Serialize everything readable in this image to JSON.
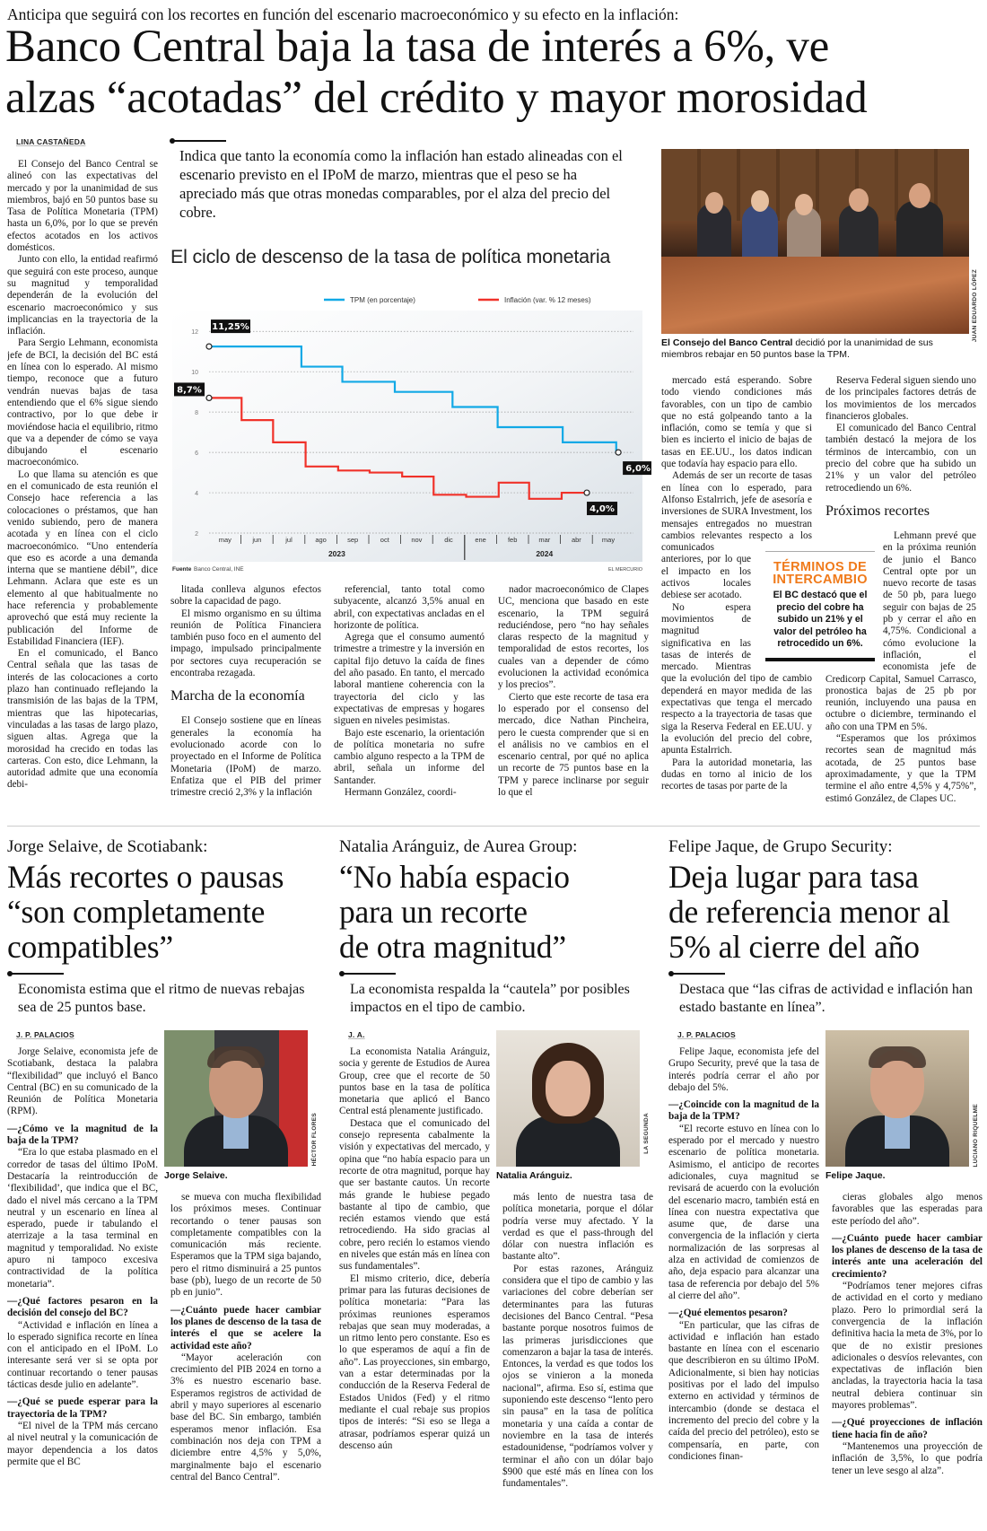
{
  "main": {
    "kicker": "Anticipa que seguirá con los recortes en función del escenario macroeconómico y su efecto en la inflación:",
    "headline": [
      "Banco Central baja la tasa de interés a 6%, ve",
      "alzas “acotadas” del crédito y mayor morosidad"
    ],
    "byline": "LINA CASTAÑEDA",
    "deck": "Indica que tanto la economía como la inflación han estado alineadas con el escenario previsto en el IPoM de marzo, mientras que el peso se ha apreciado más que otras monedas comparables, por el alza del precio del cobre.",
    "photo": {
      "caption_bold": "El Consejo del Banco Central",
      "caption_rest": " decidió por la unanimidad de sus miembros rebajar en 50 puntos base la TPM.",
      "credit": "JUAN EDUARDO LÓPEZ"
    },
    "sidebar": {
      "title": "TÉRMINOS DE INTERCAMBIO",
      "text": "El BC destacó que el precio del cobre ha subido un 21% y el valor del petróleo ha retrocedido un 6%.",
      "accent": "#f07a1a"
    },
    "columns": [
      [
        {
          "t": "p",
          "text": "El Consejo del Banco Central se alineó con las expectativas del mercado y por la unanimidad de sus miembros, bajó en 50 puntos base su Tasa de Política Monetaria (TPM) hasta un 6,0%, por lo que se prevén efectos acotados en los activos domésticos."
        },
        {
          "t": "p",
          "text": "Junto con ello, la entidad reafirmó que seguirá con este proceso, aunque su magnitud y temporalidad dependerán de la evolución del escenario macroeconómico y sus implicancias en la trayectoria de la inflación."
        },
        {
          "t": "p",
          "text": "Para Sergio Lehmann, economista jefe de BCI, la decisión del BC está en línea con lo esperado. Al mismo tiempo, reconoce que a futuro vendrán nuevas bajas de tasa entendiendo que el 6% sigue siendo contractivo, por lo que debe ir moviéndose hacia el equilibrio, ritmo que va a depender de cómo se vaya dibujando el escenario macroeconómico."
        },
        {
          "t": "p",
          "text": "Lo que llama su atención es que en el comunicado de esta reunión el Consejo hace referencia a las colocaciones o préstamos, que han venido subiendo, pero de manera acotada y en línea con el ciclo macroeconómico. “Uno entendería que eso es acorde a una demanda interna que se mantiene débil”, dice Lehmann. Aclara que este es un elemento al que habitualmente no hace referencia y probablemente aprovechó que está muy reciente la publicación del Informe de Estabilidad Financiera (IEF)."
        },
        {
          "t": "p",
          "text": "En el comunicado, el Banco Central señala que las tasas de interés de las colocaciones a corto plazo han continuado reflejando la transmisión de las bajas de la TPM, mientras que las hipotecarias, vinculadas a las tasas de largo plazo, siguen altas. Agrega que la morosidad ha crecido en todas las carteras. Con esto, dice Lehmann, la autoridad admite que una economía debi-"
        }
      ],
      [
        {
          "t": "p",
          "text": "litada conlleva algunos efectos sobre la capacidad de pago."
        },
        {
          "t": "p",
          "text": "El mismo organismo en su última reunión de Política Financiera también puso foco en el aumento del impago, impulsado principalmente por sectores cuya recuperación se encontraba rezagada."
        },
        {
          "t": "h",
          "text": "Marcha de la economía"
        },
        {
          "t": "p",
          "text": "El Consejo sostiene que en líneas generales la economía ha evolucionado acorde con lo proyectado en el Informe de Política Monetaria (IPoM) de marzo. Enfatiza que el PIB del primer trimestre creció 2,3% y la inflación"
        }
      ],
      [
        {
          "t": "p",
          "text": "referencial, tanto total como subyacente, alcanzó 3,5% anual en abril, con expectativas ancladas en el horizonte de política."
        },
        {
          "t": "p",
          "text": "Agrega que el consumo aumentó trimestre a trimestre y la inversión en capital fijo detuvo la caída de fines del año pasado. En tanto, el mercado laboral mantiene coherencia con la trayectoria del ciclo y las expectativas de empresas y hogares siguen en niveles pesimistas."
        },
        {
          "t": "p",
          "text": "Bajo este escenario, la orientación de política monetaria no sufre cambio alguno respecto a la TPM de abril, señala un informe del Santander."
        },
        {
          "t": "p",
          "text": "Hermann González, coordi-"
        }
      ],
      [
        {
          "t": "p",
          "text": "nador macroeconómico de Clapes UC, menciona que basado en este escenario, la TPM seguirá reduciéndose, pero “no hay señales claras respecto de la magnitud y temporalidad de estos recortes, los cuales van a depender de cómo evolucionen la actividad económica y los precios”."
        },
        {
          "t": "p",
          "text": "Cierto que este recorte de tasa era lo esperado por el consenso del mercado, dice Nathan Pincheira, pero le cuesta comprender que si en el análisis no ve cambios en el escenario central, por qué no aplica un recorte de 75 puntos base en la TPM y parece inclinarse por seguir lo que el"
        }
      ],
      [
        {
          "t": "p",
          "text": "mercado está esperando. Sobre todo viendo condiciones más favorables, con un tipo de cambio que no está golpeando tanto a la inflación, como se temía y que si bien es incierto el inicio de bajas de tasas en EE.UU., los datos indican que todavía hay espacio para ello."
        },
        {
          "t": "p",
          "text": "Además de ser un recorte de tasas en línea con lo esperado, para Alfonso Estalrrich, jefe de asesoría e inversiones de SURA Investment, los mensajes entregados no muestran cambios relevantes respecto a los comunicados anteriores, por lo que el impacto en los activos locales debiese ser acotado."
        },
        {
          "t": "p",
          "text": "No espera movimientos de magnitud significativa en las tasas de interés de mercado. Mientras que la evolución del tipo de cambio dependerá en mayor medida de las expectativas que tenga el mercado respecto a la trayectoria de tasas que siga la Reserva Federal en EE.UU. y la evolución del precio del cobre, apunta Estalrrich."
        },
        {
          "t": "p",
          "text": "Para la autoridad monetaria, las dudas en torno al inicio de los recortes de tasas por parte de la"
        }
      ],
      [
        {
          "t": "p",
          "text": "Reserva Federal siguen siendo uno de los principales factores detrás de los movimientos de los mercados financieros globales."
        },
        {
          "t": "p",
          "text": "El comunicado del Banco Central también destacó la mejora de los términos de intercambio, con un precio del cobre que ha subido un 21% y un valor del petróleo retrocediendo un 6%."
        },
        {
          "t": "h",
          "text": "Próximos recortes"
        },
        {
          "t": "p",
          "text": "Lehmann prevé que en la próxima reunión de junio el Banco Central opte por un nuevo recorte de tasas de 50 pb, para luego seguir con bajas de 25 pb y cerrar el año en 4,75%. Condicional a cómo evolucione la inflación, el economista jefe de Credicorp Capital, Samuel Carrasco, pronostica bajas de 25 pb por reunión, incluyendo una pausa en octubre o diciembre, terminando el año con una TPM en 5%."
        },
        {
          "t": "p",
          "text": "“Esperamos que los próximos recortes sean de magnitud más acotada, de 25 puntos base aproximadamente, y que la TPM termine el año entre 4,5% y 4,75%”, estimó González, de Clapes UC."
        }
      ]
    ]
  },
  "chart_data": {
    "type": "line",
    "title": "El ciclo de descenso de la tasa de política monetaria",
    "source_label": "Fuente",
    "source": "Banco Central, INE",
    "publisher": "EL MERCURIO",
    "x_ticks": [
      "may",
      "jun",
      "jul",
      "ago",
      "sep",
      "oct",
      "nov",
      "dic",
      "ene",
      "feb",
      "mar",
      "abr",
      "may"
    ],
    "x_years": [
      "2023",
      "2024"
    ],
    "y_ticks": [
      2,
      4,
      6,
      8,
      10,
      12
    ],
    "ylim": [
      2,
      12.5
    ],
    "grid": true,
    "legend_position": "top-right",
    "step": true,
    "series": [
      {
        "name": "TPM (en porcentaje)",
        "color": "#12a9e6",
        "points": [
          [
            "2023-05-01",
            11.25
          ],
          [
            "2023-07-28",
            10.25
          ],
          [
            "2023-09-05",
            9.5
          ],
          [
            "2023-10-25",
            9.0
          ],
          [
            "2023-12-19",
            8.25
          ],
          [
            "2024-01-31",
            7.25
          ],
          [
            "2024-04-02",
            6.5
          ],
          [
            "2024-05-23",
            6.0
          ]
        ],
        "end": "2024-05-25"
      },
      {
        "name": "Inflación (var. % 12 meses)",
        "color": "#f0322a",
        "points": [
          [
            "2023-05-01",
            8.7
          ],
          [
            "2023-06-01",
            7.6
          ],
          [
            "2023-07-01",
            6.5
          ],
          [
            "2023-08-01",
            5.3
          ],
          [
            "2023-09-01",
            5.1
          ],
          [
            "2023-10-01",
            5.0
          ],
          [
            "2023-11-01",
            4.8
          ],
          [
            "2023-12-01",
            3.9
          ],
          [
            "2024-01-01",
            3.8
          ],
          [
            "2024-02-01",
            4.5
          ],
          [
            "2024-03-01",
            3.7
          ],
          [
            "2024-04-01",
            4.0
          ]
        ],
        "end": "2024-04-25"
      }
    ],
    "annotations": [
      "11,25%",
      "8,7%",
      "6,0%",
      "4,0%"
    ]
  },
  "articles": [
    {
      "kicker": "Jorge Selaive, de Scotiabank:",
      "headline": [
        "Más recortes o pausas",
        "“son completamente",
        "compatibles”"
      ],
      "deck": "Economista estima que el ritmo de nuevas rebajas sea de 25 puntos base.",
      "byline": "J. P. PALACIOS",
      "photo_caption": "Jorge Selaive.",
      "photo_credit": "HÉCTOR FLORES",
      "columns": [
        [
          {
            "t": "p",
            "text": "Jorge Selaive, economista jefe de Scotiabank, destaca la palabra “flexibilidad” que incluyó el Banco Central (BC) en su comunicado de la Reunión de Política Monetaria (RPM)."
          },
          {
            "t": "q",
            "text": "—¿Cómo ve la magnitud de la baja de la TPM?"
          },
          {
            "t": "p",
            "text": "“Era lo que estaba plasmado en el corredor de tasas del último IPoM. Destacaría la reintroducción de ‘flexibilidad’, que indica que el BC, dado el nivel más cercano a la TPM neutral y un escenario en línea al esperado, puede ir tabulando el aterrizaje a la tasa terminal en magnitud y temporalidad. No existe apuro ni tampoco excesiva contractividad de la política monetaria”."
          },
          {
            "t": "q",
            "text": "—¿Qué factores pesaron en la decisión del consejo del BC?"
          },
          {
            "t": "p",
            "text": "“Actividad e inflación en línea a lo esperado significa recorte en línea con el anticipado en el IPoM. Lo interesante será ver si se opta por continuar recortando o tener pausas tácticas desde julio en adelante”."
          },
          {
            "t": "q",
            "text": "—¿Qué se puede esperar para la trayectoria de la TPM?"
          },
          {
            "t": "p",
            "text": "“El nivel de la TPM más cercano al nivel neutral y la comunicación de mayor dependencia a los datos permite que el BC"
          }
        ],
        [
          {
            "t": "p",
            "text": "se mueva con mucha flexibilidad los próximos meses. Continuar recortando o tener pausas son completamente compatibles con la comunicación más reciente. Esperamos que la TPM siga bajando, pero el ritmo disminuirá a 25 puntos base (pb), luego de un recorte de 50 pb en junio”."
          },
          {
            "t": "q",
            "text": "—¿Cuánto puede hacer cambiar los planes de descenso de la tasa de interés el que se acelere la actividad este año?"
          },
          {
            "t": "p",
            "text": "“Mayor aceleración con crecimiento del PIB 2024 en torno a 3% es nuestro escenario base. Esperamos registros de actividad de abril y mayo superiores al escenario base del BC. Sin embargo, también esperamos menor inflación. Esa combinación nos deja con TPM a diciembre entre 4,5% y 5,0%, marginalmente bajo el escenario central del Banco Central”."
          }
        ]
      ]
    },
    {
      "kicker": "Natalia Aránguiz, de Aurea Group:",
      "headline": [
        "“No había espacio",
        "para un recorte",
        "de otra magnitud”"
      ],
      "deck": "La economista respalda la “cautela” por posibles impactos en el tipo de cambio.",
      "byline": "J. A.",
      "photo_caption": "Natalia Aránguiz.",
      "photo_credit": "LA SEGUNDA",
      "columns": [
        [
          {
            "t": "p",
            "text": "La economista Natalia Aránguiz, socia y gerente de Estudios de Aurea Group, cree que el recorte de 50 puntos base en la tasa de política monetaria que aplicó el Banco Central está plenamente justificado."
          },
          {
            "t": "p",
            "text": "Destaca que el comunicado del consejo representa cabalmente la visión y expectativas del mercado, y opina que “no había espacio para un recorte de otra magnitud, porque hay que ser bastante cautos. Un recorte más grande le hubiese pegado bastante al tipo de cambio, que recién estamos viendo que está retrocediendo. Ha sido gracias al cobre, pero recién lo estamos viendo en niveles que están más en línea con sus fundamentales”."
          },
          {
            "t": "p",
            "text": "El mismo criterio, dice, debería primar para las futuras decisiones de política monetaria: “Para las próximas reuniones esperamos rebajas que sean muy moderadas, a un ritmo lento pero constante. Eso es lo que esperamos de aquí a fin de año”. Las proyecciones, sin embargo, van a estar determinadas por la conducción de la Reserva Federal de Estados Unidos (Fed) y el ritmo mediante el cual rebaje sus propios tipos de interés: “Si eso se llega a atrasar, podríamos esperar quizá un descenso aún"
          }
        ],
        [
          {
            "t": "p",
            "text": "más lento de nuestra tasa de política monetaria, porque el dólar podría verse muy afectado. Y la verdad es que el pass-through del dólar con nuestra inflación es bastante alto”."
          },
          {
            "t": "p",
            "text": "Por estas razones, Aránguiz considera que el tipo de cambio y las variaciones del cobre deberían ser determinantes para las futuras decisiones del Banco Central. “Pesa bastante porque nosotros fuimos de las primeras jurisdicciones que comenzaron a bajar la tasa de interés. Entonces, la verdad es que todos los ojos se vinieron a la moneda nacional”, afirma. Eso sí, estima que suponiendo este descenso “lento pero sin pausa” en la tasa de política monetaria y una caída a contar de noviembre en la tasa de interés estadounidense, “podríamos volver y terminar el año con un dólar bajo $900 que esté más en línea con los fundamentales”."
          }
        ]
      ]
    },
    {
      "kicker": "Felipe Jaque, de Grupo Security:",
      "headline": [
        "Deja lugar para tasa",
        "de referencia menor al",
        "5% al cierre del año"
      ],
      "deck": "Destaca que “las cifras de actividad e inflación han estado bastante en línea”.",
      "byline": "J. P. PALACIOS",
      "photo_caption": "Felipe Jaque.",
      "photo_credit": "LUCIANO RIQUELME",
      "columns": [
        [
          {
            "t": "p",
            "text": "Felipe Jaque, economista jefe del Grupo Security, prevé que la tasa de interés podría cerrar el año por debajo del 5%."
          },
          {
            "t": "q",
            "text": "—¿Coincide con la magnitud de la baja de la TPM?"
          },
          {
            "t": "p",
            "text": "“El recorte estuvo en línea con lo esperado por el mercado y nuestro escenario de política monetaria. Asimismo, el anticipo de recortes adicionales, cuya magnitud se revisará de acuerdo con la evolución del escenario macro, también está en línea con nuestra expectativa que asume que, de darse una convergencia de la inflación y cierta normalización de las sorpresas al alza en actividad de comienzos de año, deja espacio para alcanzar una tasa de referencia por debajo del 5% al cierre del año”."
          },
          {
            "t": "q",
            "text": "—¿Qué elementos pesaron?"
          },
          {
            "t": "p",
            "text": "“En particular, que las cifras de actividad e inflación han estado bastante en línea con el escenario que describieron en su último IPoM. Adicionalmente, si bien hay noticias positivas por el lado del impulso externo en actividad y términos de intercambio (donde se destaca el incremento del precio del cobre y la caída del precio del petróleo), esto se compensaría, en parte, con condiciones finan-"
          }
        ],
        [
          {
            "t": "p",
            "text": "cieras globales algo menos favorables que las esperadas para este período del año”."
          },
          {
            "t": "q",
            "text": "—¿Cuánto puede hacer cambiar los planes de descenso de la tasa de interés ante una aceleración del crecimiento?"
          },
          {
            "t": "p",
            "text": "“Podríamos tener mejores cifras de actividad en el corto y mediano plazo. Pero lo primordial será la convergencia de la inflación definitiva hacia la meta de 3%, por lo que de no existir presiones adicionales o desvíos relevantes, con expectativas de inflación bien ancladas, la trayectoria hacia la tasa neutral debiera continuar sin mayores problemas”."
          },
          {
            "t": "q",
            "text": "—¿Qué proyecciones de inflación tiene hacia fin de año?"
          },
          {
            "t": "p",
            "text": "“Mantenemos una proyección de inflación de 3,5%, lo que podría tener un leve sesgo al alza”."
          }
        ]
      ]
    }
  ]
}
